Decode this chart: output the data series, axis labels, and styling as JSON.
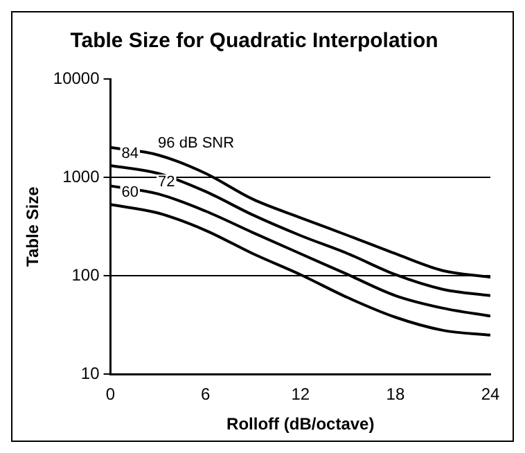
{
  "chart_data": {
    "type": "line",
    "title": "Table Size for Quadratic Interpolation",
    "xlabel": "Rolloff (dB/octave)",
    "ylabel": "Table Size",
    "x": [
      0,
      3,
      6,
      9,
      12,
      15,
      18,
      21,
      24
    ],
    "series": [
      {
        "name": "96 dB SNR",
        "color": "#000000",
        "values": [
          2020,
          1690,
          1100,
          600,
          390,
          257,
          168,
          113,
          97
        ]
      },
      {
        "name": "84",
        "color": "#000000",
        "values": [
          1320,
          1100,
          720,
          415,
          257,
          168,
          103,
          73,
          63
        ]
      },
      {
        "name": "72",
        "color": "#000000",
        "values": [
          820,
          680,
          455,
          275,
          168,
          103,
          63,
          47,
          39
        ]
      },
      {
        "name": "60",
        "color": "#000000",
        "values": [
          530,
          435,
          290,
          168,
          103,
          60,
          38,
          28,
          25
        ]
      }
    ],
    "xlim": [
      0,
      24
    ],
    "xticks": [
      0,
      6,
      12,
      18,
      24
    ],
    "ylim": [
      10,
      10000
    ],
    "yticks": [
      10,
      100,
      1000,
      10000
    ],
    "log": "y",
    "grid": "y",
    "legend": false,
    "marker": "none",
    "line_style": "solid"
  }
}
